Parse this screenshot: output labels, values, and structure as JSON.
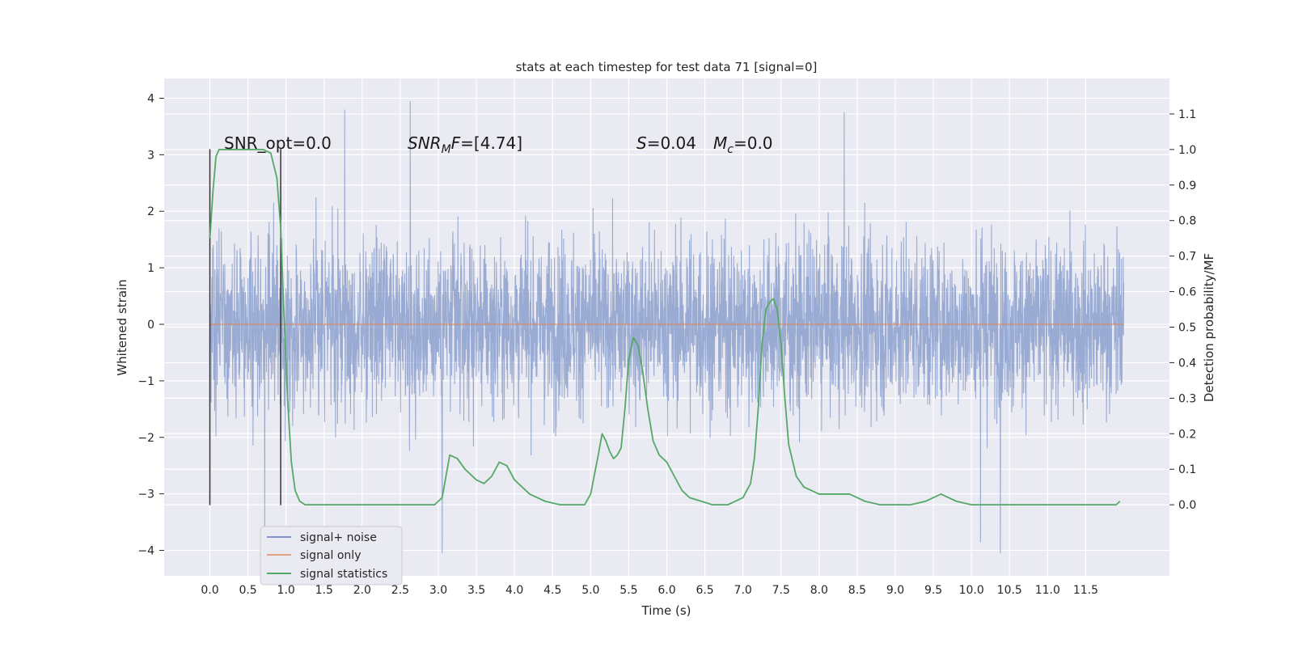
{
  "chart_data": {
    "type": "line",
    "title": "stats at each timestep for test data 71 [signal=0]",
    "xlabel": "Time (s)",
    "ylabel": "Whitened strain",
    "y2label": "Detection probability/MF",
    "xlim": [
      -0.6,
      12.6
    ],
    "ylim": [
      -4.45,
      4.35
    ],
    "y2lim": [
      -0.2,
      1.2
    ],
    "x_ticks": [
      0.0,
      0.5,
      1.0,
      1.5,
      2.0,
      2.5,
      3.0,
      3.5,
      4.0,
      4.5,
      5.0,
      5.5,
      6.0,
      6.5,
      7.0,
      7.5,
      8.0,
      8.5,
      9.0,
      9.5,
      10.0,
      10.5,
      11.0,
      11.5
    ],
    "x_tick_labels": [
      "0.0",
      "0.5",
      "1.0",
      "1.5",
      "2.0",
      "2.5",
      "3.0",
      "3.5",
      "4.0",
      "4.5",
      "5.0",
      "5.5",
      "6.0",
      "6.5",
      "7.0",
      "7.5",
      "8.0",
      "8.5",
      "9.0",
      "9.5",
      "10.0",
      "10.5",
      "11.0",
      "11.5"
    ],
    "y_ticks": [
      4,
      3,
      2,
      1,
      0,
      -1,
      -2,
      -3,
      -4
    ],
    "y_tick_labels": [
      "4",
      "3",
      "2",
      "1",
      "0",
      "−1",
      "−2",
      "−3",
      "−4"
    ],
    "y2_ticks": [
      1.1,
      1.0,
      0.9,
      0.8,
      0.7,
      0.6,
      0.5,
      0.4,
      0.3,
      0.2,
      0.1,
      0.0
    ],
    "y2_tick_labels": [
      "1.1",
      "1.0",
      "0.9",
      "0.8",
      "0.7",
      "0.6",
      "0.5",
      "0.4",
      "0.3",
      "0.2",
      "0.1",
      "0.0"
    ],
    "grid": true,
    "legend_position": "lower-left",
    "series": [
      {
        "name": "signal+ noise",
        "color": "#7f96c8",
        "axis": "left",
        "description_values": "dense whitened noise, approximately within [-4.1, 4.0]",
        "x_range": [
          0.0,
          12.0
        ],
        "typical_band": [
          -2.2,
          2.4
        ],
        "peaks": [
          {
            "x": 1.77,
            "y": 3.8
          },
          {
            "x": 2.63,
            "y": 3.95
          },
          {
            "x": 3.05,
            "y": -4.05
          },
          {
            "x": 8.33,
            "y": 3.75
          },
          {
            "x": 10.38,
            "y": -4.05
          },
          {
            "x": 10.12,
            "y": -3.85
          },
          {
            "x": 0.72,
            "y": -3.6
          }
        ]
      },
      {
        "name": "signal only",
        "color": "#dd8452",
        "axis": "left",
        "x": [
          0.0,
          12.0
        ],
        "values": [
          0.0,
          0.0
        ]
      },
      {
        "name": "signal statistics",
        "color": "#55a868",
        "axis": "right",
        "x": [
          0.0,
          0.04,
          0.08,
          0.12,
          0.2,
          0.3,
          0.45,
          0.6,
          0.7,
          0.8,
          0.88,
          0.93,
          0.97,
          1.02,
          1.07,
          1.12,
          1.18,
          1.25,
          1.4,
          1.8,
          2.2,
          2.6,
          2.95,
          3.05,
          3.15,
          3.25,
          3.35,
          3.5,
          3.6,
          3.7,
          3.8,
          3.9,
          4.0,
          4.2,
          4.4,
          4.6,
          4.8,
          4.92,
          5.0,
          5.1,
          5.15,
          5.2,
          5.25,
          5.3,
          5.35,
          5.4,
          5.45,
          5.5,
          5.56,
          5.62,
          5.68,
          5.75,
          5.82,
          5.9,
          6.0,
          6.1,
          6.2,
          6.3,
          6.45,
          6.6,
          6.8,
          7.0,
          7.1,
          7.15,
          7.2,
          7.25,
          7.3,
          7.35,
          7.4,
          7.45,
          7.5,
          7.55,
          7.6,
          7.7,
          7.8,
          7.9,
          8.0,
          8.1,
          8.2,
          8.3,
          8.4,
          8.5,
          8.6,
          8.8,
          9.0,
          9.2,
          9.4,
          9.5,
          9.6,
          9.7,
          9.8,
          10.0,
          10.5,
          11.0,
          11.5,
          11.9,
          11.95
        ],
        "values": [
          0.75,
          0.88,
          0.98,
          1.0,
          1.0,
          1.0,
          1.0,
          1.0,
          1.0,
          0.99,
          0.92,
          0.78,
          0.55,
          0.3,
          0.12,
          0.04,
          0.01,
          0.0,
          0.0,
          0.0,
          0.0,
          0.0,
          0.0,
          0.02,
          0.14,
          0.13,
          0.1,
          0.07,
          0.06,
          0.08,
          0.12,
          0.11,
          0.07,
          0.03,
          0.01,
          0.0,
          0.0,
          0.0,
          0.03,
          0.14,
          0.2,
          0.18,
          0.15,
          0.13,
          0.14,
          0.16,
          0.27,
          0.41,
          0.47,
          0.45,
          0.38,
          0.27,
          0.18,
          0.14,
          0.12,
          0.08,
          0.04,
          0.02,
          0.01,
          0.0,
          0.0,
          0.02,
          0.06,
          0.13,
          0.27,
          0.45,
          0.55,
          0.57,
          0.58,
          0.55,
          0.45,
          0.3,
          0.17,
          0.08,
          0.05,
          0.04,
          0.03,
          0.03,
          0.03,
          0.03,
          0.03,
          0.02,
          0.01,
          0.0,
          0.0,
          0.0,
          0.01,
          0.02,
          0.03,
          0.02,
          0.01,
          0.0,
          0.0,
          0.0,
          0.0,
          0.0,
          0.01
        ]
      }
    ],
    "vertical_lines": [
      {
        "x": 0.0,
        "ymin": -3.2,
        "ymax": 3.1,
        "color": "#333333"
      },
      {
        "x": 0.93,
        "ymin": -3.2,
        "ymax": 3.1,
        "color": "#333333"
      }
    ],
    "annotations": {
      "snr_opt": "SNR_opt=0.0",
      "snr_mf_base": "SNR",
      "snr_mf_sub": "M",
      "snr_mf_tail_var": "F",
      "snr_mf_value": "=[4.74]",
      "s_var": "S",
      "s_value": "=0.04",
      "mc_var": "M",
      "mc_sub": "c",
      "mc_value": "=0.0"
    }
  }
}
